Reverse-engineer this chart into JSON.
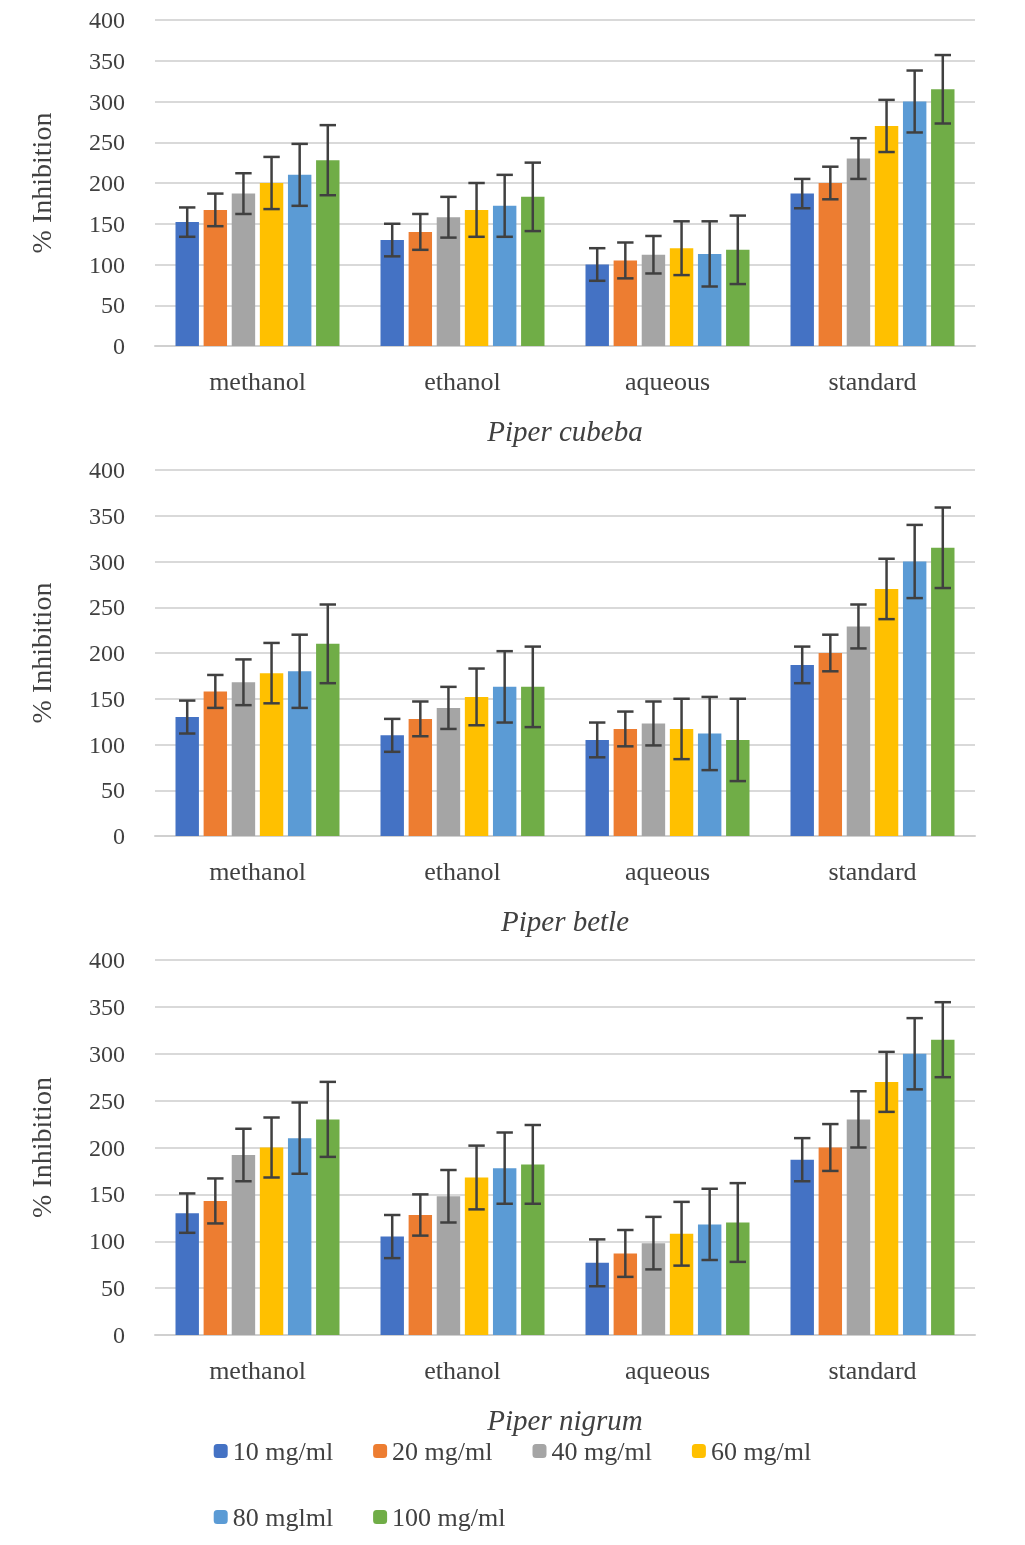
{
  "chart_data": [
    {
      "type": "bar",
      "xlabel": "Piper cubeba",
      "ylabel": "% Inhibition",
      "categories": [
        "methanol",
        "ethanol",
        "aqueous",
        "standard"
      ],
      "ylim": [
        0,
        400
      ],
      "yticks": [
        0,
        50,
        100,
        150,
        200,
        250,
        300,
        350,
        400
      ],
      "grid": "y",
      "legend": false,
      "series": [
        {
          "color": "#4472c4",
          "values": [
            152,
            130,
            100,
            187
          ],
          "errors": [
            18,
            20,
            20,
            18
          ]
        },
        {
          "color": "#ed7d31",
          "values": [
            167,
            140,
            105,
            200
          ],
          "errors": [
            20,
            22,
            22,
            20
          ]
        },
        {
          "color": "#a5a5a5",
          "values": [
            187,
            158,
            112,
            230
          ],
          "errors": [
            25,
            25,
            23,
            25
          ]
        },
        {
          "color": "#ffc000",
          "values": [
            200,
            167,
            120,
            270
          ],
          "errors": [
            32,
            33,
            33,
            32
          ]
        },
        {
          "color": "#5b9bd5",
          "values": [
            210,
            172,
            113,
            300
          ],
          "errors": [
            38,
            38,
            40,
            38
          ]
        },
        {
          "color": "#70ad47",
          "values": [
            228,
            183,
            118,
            315
          ],
          "errors": [
            43,
            42,
            42,
            42
          ]
        }
      ]
    },
    {
      "type": "bar",
      "xlabel": "Piper betle",
      "ylabel": "% Inhibition",
      "categories": [
        "methanol",
        "ethanol",
        "aqueous",
        "standard"
      ],
      "ylim": [
        0,
        400
      ],
      "yticks": [
        0,
        50,
        100,
        150,
        200,
        250,
        300,
        350,
        400
      ],
      "grid": "y",
      "legend": false,
      "series": [
        {
          "color": "#4472c4",
          "values": [
            130,
            110,
            105,
            187
          ],
          "errors": [
            18,
            18,
            19,
            20
          ]
        },
        {
          "color": "#ed7d31",
          "values": [
            158,
            128,
            117,
            200
          ],
          "errors": [
            18,
            19,
            19,
            20
          ]
        },
        {
          "color": "#a5a5a5",
          "values": [
            168,
            140,
            123,
            229
          ],
          "errors": [
            25,
            23,
            24,
            24
          ]
        },
        {
          "color": "#ffc000",
          "values": [
            178,
            152,
            117,
            270
          ],
          "errors": [
            33,
            31,
            33,
            33
          ]
        },
        {
          "color": "#5b9bd5",
          "values": [
            180,
            163,
            112,
            300
          ],
          "errors": [
            40,
            39,
            40,
            40
          ]
        },
        {
          "color": "#70ad47",
          "values": [
            210,
            163,
            105,
            315
          ],
          "errors": [
            43,
            44,
            45,
            44
          ]
        }
      ]
    },
    {
      "type": "bar",
      "xlabel": "Piper nigrum",
      "ylabel": "% Inhibition",
      "categories": [
        "methanol",
        "ethanol",
        "aqueous",
        "standard"
      ],
      "ylim": [
        0,
        400
      ],
      "yticks": [
        0,
        50,
        100,
        150,
        200,
        250,
        300,
        350,
        400
      ],
      "grid": "y",
      "legend": "bottom",
      "series": [
        {
          "name": "10 mg/ml",
          "color": "#4472c4",
          "values": [
            130,
            105,
            77,
            187
          ],
          "errors": [
            21,
            23,
            25,
            23
          ]
        },
        {
          "name": "20 mg/ml",
          "color": "#ed7d31",
          "values": [
            143,
            128,
            87,
            200
          ],
          "errors": [
            24,
            22,
            25,
            25
          ]
        },
        {
          "name": "40 mg/ml",
          "color": "#a5a5a5",
          "values": [
            192,
            148,
            98,
            230
          ],
          "errors": [
            28,
            28,
            28,
            30
          ]
        },
        {
          "name": "60 mg/ml",
          "color": "#ffc000",
          "values": [
            200,
            168,
            108,
            270
          ],
          "errors": [
            32,
            34,
            34,
            32
          ]
        },
        {
          "name": "80 mglml",
          "color": "#5b9bd5",
          "values": [
            210,
            178,
            118,
            300
          ],
          "errors": [
            38,
            38,
            38,
            38
          ]
        },
        {
          "name": "100 mg/ml",
          "color": "#70ad47",
          "values": [
            230,
            182,
            120,
            315
          ],
          "errors": [
            40,
            42,
            42,
            40
          ]
        }
      ]
    }
  ]
}
